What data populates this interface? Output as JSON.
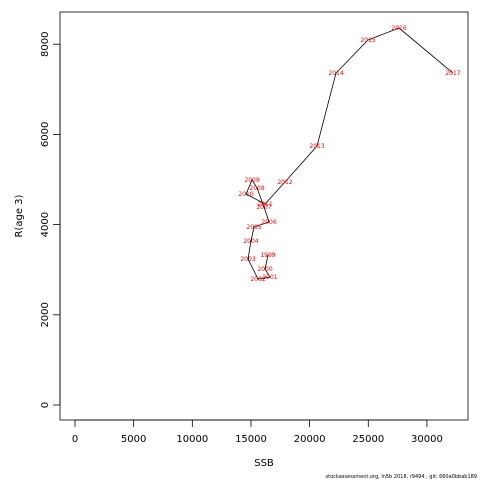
{
  "chart_data": {
    "type": "line",
    "xlabel": "SSB",
    "ylabel": "R(age 3)",
    "footnote": "stockassessment.org, ln5b 2018, r9494 , git: 660a0bbab189",
    "point_labels": [
      "1999",
      "2000",
      "2001",
      "2002",
      "2003",
      "2004",
      "2005",
      "2006",
      "2007",
      "2008",
      "2009",
      "2010",
      "2011",
      "2012",
      "2013",
      "2014",
      "2015",
      "2016",
      "2017"
    ],
    "x": [
      16450,
      16200,
      16620,
      15600,
      14750,
      15000,
      15260,
      16540,
      16110,
      15520,
      15090,
      14580,
      16200,
      17900,
      20630,
      22250,
      24980,
      27620,
      32220
    ],
    "values": [
      3326,
      3015,
      2838,
      2794,
      3237,
      3636,
      3947,
      4058,
      4390,
      4812,
      4989,
      4678,
      4457,
      4945,
      5743,
      7361,
      8093,
      8359,
      7361
    ],
    "color": "#000000",
    "label_color": "#ff0000",
    "xlim": [
      -1279,
      33500
    ],
    "ylim": [
      -332,
      8714
    ],
    "xticks": [
      0,
      5000,
      10000,
      15000,
      20000,
      25000,
      30000
    ],
    "yticks": [
      0,
      2000,
      4000,
      6000,
      8000
    ]
  }
}
